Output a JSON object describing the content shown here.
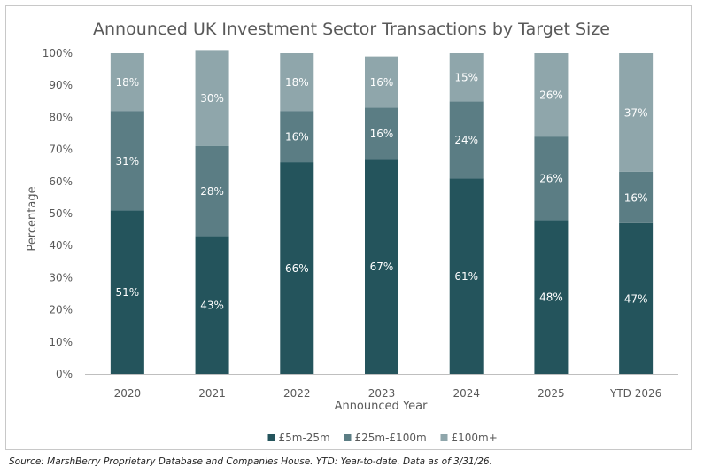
{
  "chart_data": {
    "type": "bar",
    "stacked": true,
    "title": "Announced UK Investment Sector Transactions by Target Size",
    "xlabel": "Announced Year",
    "ylabel": "Percentage",
    "ylim": [
      0,
      100
    ],
    "yticks": [
      "0%",
      "10%",
      "20%",
      "30%",
      "40%",
      "50%",
      "60%",
      "70%",
      "80%",
      "90%",
      "100%"
    ],
    "categories": [
      "2020",
      "2021",
      "2022",
      "2023",
      "2024",
      "2025",
      "YTD 2026"
    ],
    "series": [
      {
        "name": "£5m-25m",
        "color": "#24545c",
        "values": [
          51,
          43,
          66,
          67,
          61,
          48,
          47
        ],
        "labels": [
          "51%",
          "43%",
          "66%",
          "67%",
          "61%",
          "48%",
          "47%"
        ]
      },
      {
        "name": "£25m-£100m",
        "color": "#5b7d84",
        "values": [
          31,
          28,
          16,
          16,
          24,
          26,
          16
        ],
        "labels": [
          "31%",
          "28%",
          "16%",
          "16%",
          "24%",
          "26%",
          "16%"
        ]
      },
      {
        "name": "£100m+",
        "color": "#8fa6ab",
        "values": [
          18,
          30,
          18,
          16,
          15,
          26,
          37
        ],
        "labels": [
          "18%",
          "30%",
          "18%",
          "16%",
          "15%",
          "26%",
          "37%"
        ]
      }
    ],
    "legend_position": "bottom",
    "grid": false
  },
  "source_note": "Source: MarshBerry Proprietary Database and Companies House. YTD: Year-to-date. Data as of 3/31/26."
}
